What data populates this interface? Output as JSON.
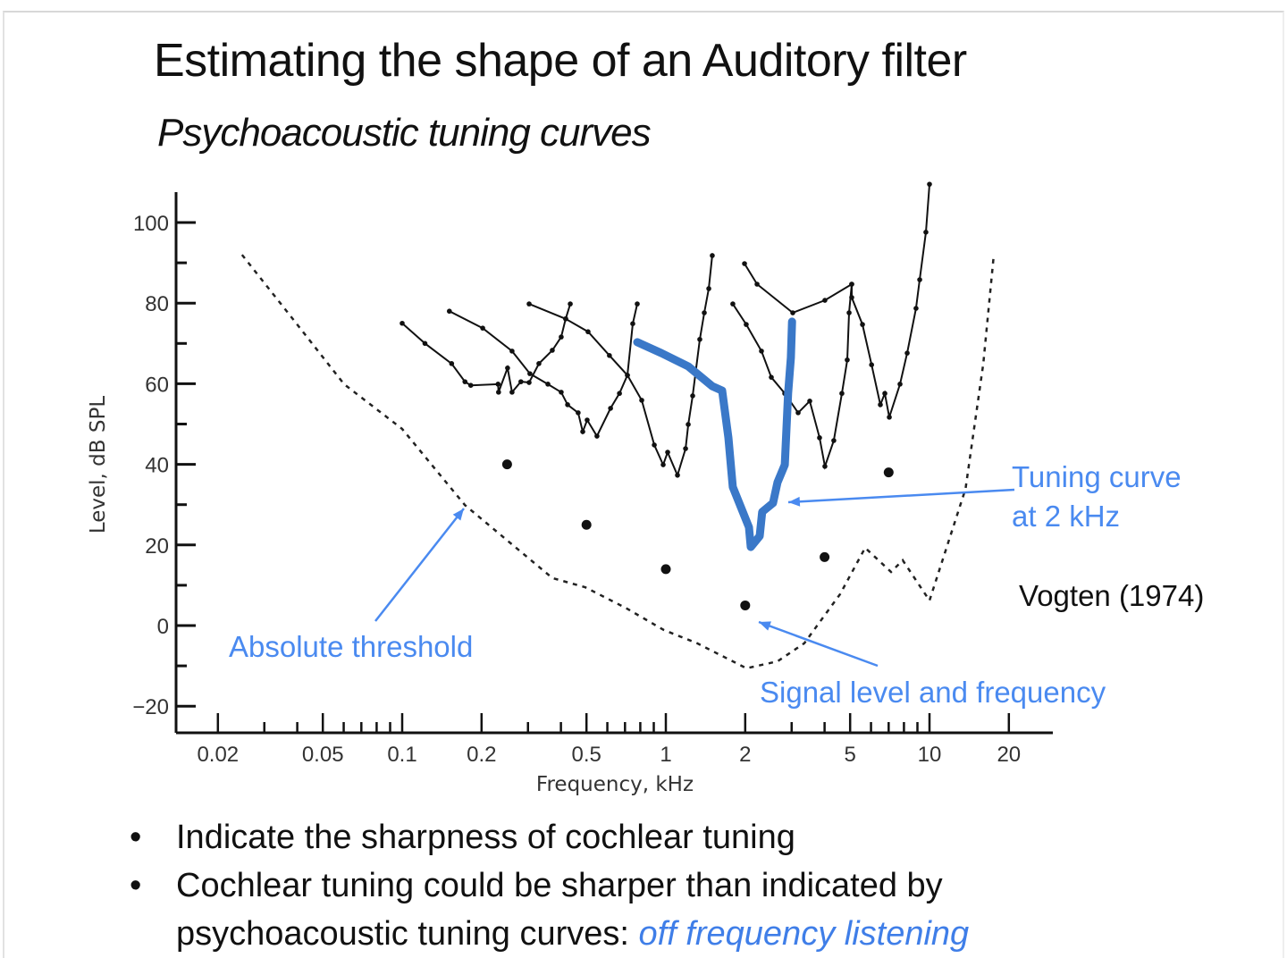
{
  "slide": {
    "title": "Estimating the shape of an Auditory filter",
    "subtitle": "Psychoacoustic tuning curves",
    "credit": "Vogten (1974)",
    "bullets": [
      {
        "text": "Indicate the sharpness of cochlear tuning"
      },
      {
        "text": "Cochlear tuning could be sharper than indicated by",
        "text2": "psychoacoustic tuning curves: ",
        "emphasis": "off frequency listening"
      }
    ],
    "bullet_glyph": "•"
  },
  "annotations": {
    "absolute_threshold": "Absolute threshold",
    "tuning_curve_line1": "Tuning curve",
    "tuning_curve_line2": "at 2 kHz",
    "signal": "Signal level and frequency"
  },
  "colors": {
    "annotation": "#4a8af0",
    "highlight_curve": "#3a78c8",
    "curves": "#111111"
  },
  "chart_data": {
    "type": "line",
    "xlabel": "Frequency, kHz",
    "ylabel": "Level, dB SPL",
    "xscale": "log",
    "xlim": [
      0.015,
      25
    ],
    "ylim": [
      -25,
      105
    ],
    "xticks": [
      0.02,
      0.05,
      0.1,
      0.2,
      0.5,
      1,
      2,
      5,
      10,
      20
    ],
    "xtick_labels": [
      "0.02",
      "0.05",
      "0.1",
      "0.2",
      "0.5",
      "1",
      "2",
      "5",
      "10",
      "20"
    ],
    "yticks": [
      -20,
      0,
      20,
      40,
      60,
      80,
      100
    ],
    "ytick_labels": [
      "−20",
      "0",
      "20",
      "40",
      "60",
      "80",
      "100"
    ],
    "grid": false,
    "series": [
      {
        "style": "black-markers",
        "x": [
          0.1,
          0.122,
          0.154,
          0.173,
          0.182,
          0.231,
          0.232,
          0.251,
          0.261,
          0.282,
          0.303,
          0.33,
          0.371,
          0.401,
          0.417,
          0.434
        ],
        "y": [
          75,
          70,
          65,
          60.5,
          59.6,
          59.9,
          57.9,
          63.9,
          57.9,
          60.5,
          60.3,
          65,
          68.3,
          71.6,
          76.1,
          79.8
        ]
      },
      {
        "style": "black-markers",
        "x": [
          0.151,
          0.202,
          0.261,
          0.305,
          0.357,
          0.401,
          0.424,
          0.465,
          0.484,
          0.503,
          0.548,
          0.617,
          0.667,
          0.715,
          0.749,
          0.779
        ],
        "y": [
          78,
          73.8,
          68.1,
          62.5,
          59.9,
          57.9,
          54.8,
          52.8,
          48.1,
          51,
          47,
          53.9,
          57.6,
          62.1,
          74.9,
          79.8
        ]
      },
      {
        "style": "black-markers",
        "x": [
          0.303,
          0.417,
          0.507,
          0.611,
          0.715,
          0.81,
          0.904,
          0.977,
          1.016,
          1.107,
          1.188,
          1.216,
          1.264,
          1.345,
          1.399,
          1.455,
          1.5
        ],
        "y": [
          79.8,
          76.1,
          72.9,
          67,
          62.1,
          55.9,
          44.8,
          39.9,
          43,
          37.3,
          43.9,
          49.9,
          57,
          71,
          77.6,
          83.6,
          91.8
        ]
      },
      {
        "style": "black-markers",
        "x": [
          1.795,
          2.018,
          2.305,
          2.512,
          2.825,
          3.175,
          3.514,
          3.828,
          4.011,
          4.335,
          4.652,
          4.875,
          4.955,
          5.07
        ],
        "y": [
          79.8,
          74.7,
          68.1,
          61.6,
          57.6,
          52.8,
          55.7,
          46.6,
          39.5,
          45.9,
          57.6,
          65.9,
          77.6,
          84.7
        ]
      },
      {
        "style": "black-markers",
        "x": [
          1.988,
          2.218,
          3.03,
          4.011,
          5.07,
          5.07,
          5.57,
          6.03,
          6.51,
          6.77,
          7.04,
          7.73,
          8.23,
          8.89,
          9.18,
          9.69,
          10.0
        ],
        "y": [
          89.8,
          84.7,
          77.6,
          80.7,
          84.7,
          81.4,
          74.7,
          64.7,
          54.8,
          57.6,
          51.7,
          59.9,
          67.6,
          78.7,
          85.8,
          97.6,
          109.5
        ]
      },
      {
        "style": "blue-highlight",
        "x": [
          0.779,
          0.962,
          1.216,
          1.5,
          1.635,
          1.727,
          1.795,
          1.941,
          2.066,
          2.099,
          2.27,
          2.32,
          2.55,
          2.65,
          2.825,
          2.91,
          2.98,
          3.01
        ],
        "y": [
          70.3,
          67.6,
          64.3,
          59.4,
          58.3,
          46.6,
          34.4,
          28.8,
          24.4,
          19.5,
          22.2,
          28.2,
          30.4,
          35.5,
          39.9,
          57.6,
          66.5,
          75.4
        ]
      },
      {
        "style": "dashed",
        "x": [
          0.0247,
          0.0392,
          0.0602,
          0.0999,
          0.173,
          0.276,
          0.371,
          0.495,
          0.704,
          0.983,
          1.314,
          2.02,
          2.65,
          3.35,
          4.58,
          5.7,
          7.15,
          7.91,
          10.0,
          13.7,
          16.0,
          17.5
        ],
        "y": [
          92,
          75.4,
          59.9,
          48.8,
          29.9,
          18.8,
          11.8,
          9.5,
          4.4,
          -1.1,
          -4.4,
          -10.6,
          -8.9,
          -4.4,
          7.8,
          19.3,
          13.3,
          16.2,
          6.2,
          33.9,
          65,
          91.4
        ]
      }
    ],
    "signal_points": {
      "x": [
        0.25,
        0.5,
        1,
        2,
        4,
        7
      ],
      "y": [
        40,
        25,
        14,
        5,
        17,
        38
      ]
    }
  }
}
